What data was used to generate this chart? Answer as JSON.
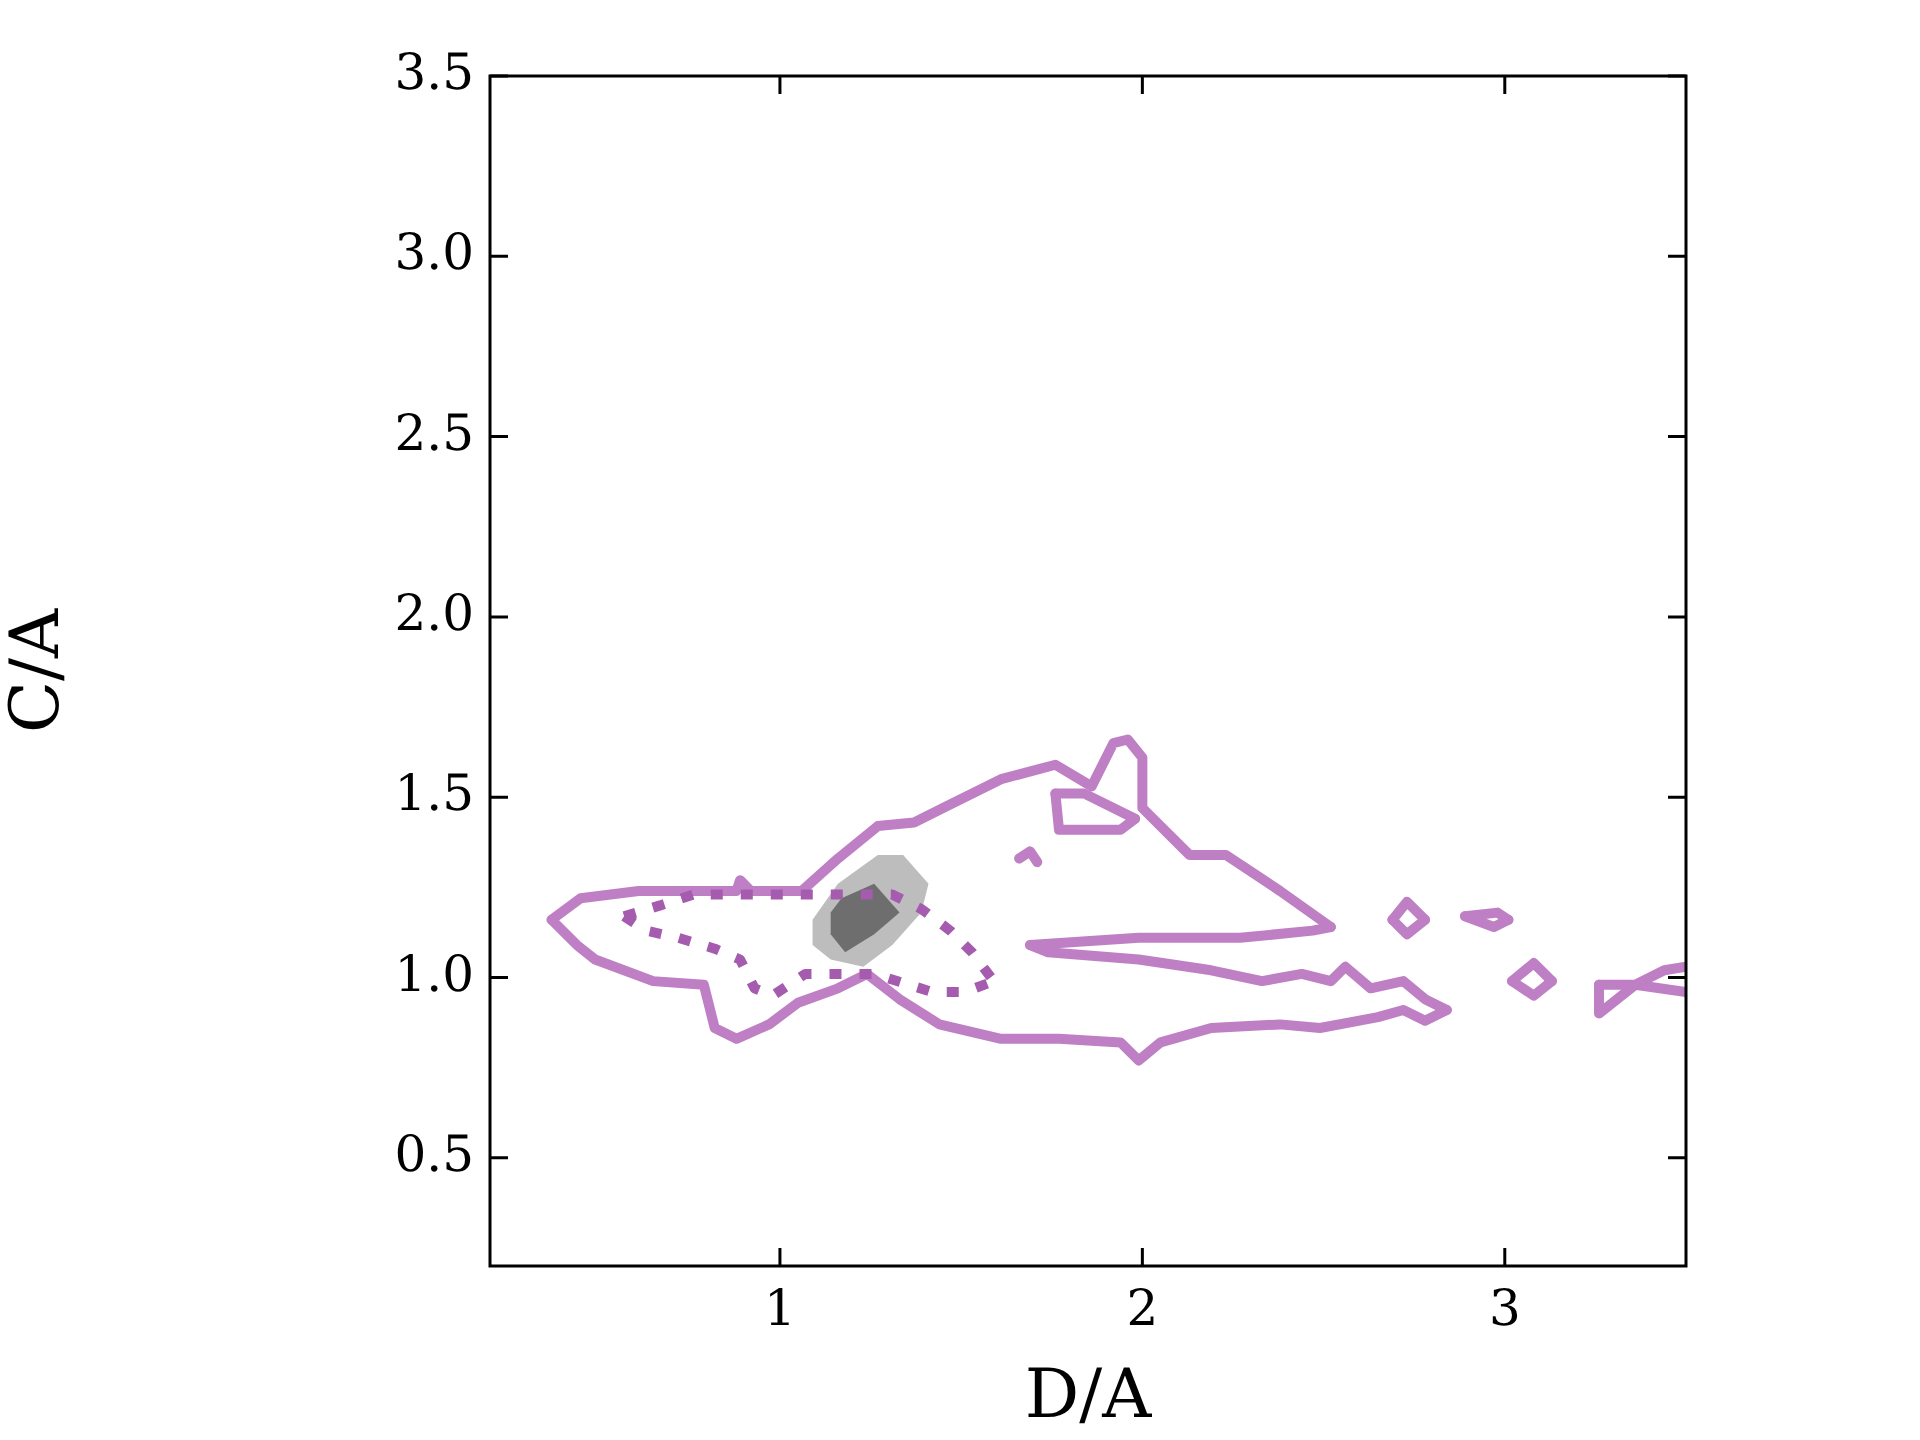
{
  "chart_data": {
    "type": "line",
    "xlabel": "D/A",
    "ylabel": "C/A",
    "xlim": [
      0.2,
      3.5
    ],
    "ylim": [
      0.2,
      3.5
    ],
    "xticks": [
      1,
      2,
      3
    ],
    "yticks": [
      {
        "value": 0.5,
        "label": "0.5"
      },
      {
        "value": 1,
        "label": "1.0"
      },
      {
        "value": 1.5,
        "label": "1.5"
      },
      {
        "value": 2,
        "label": "2.0"
      },
      {
        "value": 2.5,
        "label": "2.5"
      },
      {
        "value": 3,
        "label": "3.0"
      },
      {
        "value": 3.5,
        "label": "3.5"
      }
    ],
    "legend": false,
    "marker": "none",
    "series": [
      {
        "color": "#bf7fc4",
        "line_style": "solid",
        "x": [
          0.37,
          0.45,
          0.61,
          0.88,
          0.89,
          0.92,
          1.06,
          1.16,
          1.27,
          1.37,
          1.45,
          1.61,
          1.76,
          1.86,
          1.92,
          1.96,
          2.0,
          2.0,
          2.13,
          2.23,
          2.38,
          2.52
        ],
        "values": [
          1.16,
          1.22,
          1.24,
          1.24,
          1.27,
          1.24,
          1.24,
          1.33,
          1.42,
          1.43,
          1.47,
          1.55,
          1.59,
          1.53,
          1.65,
          1.66,
          1.61,
          1.47,
          1.34,
          1.34,
          1.24,
          1.14
        ]
      },
      {
        "color": "#bf7fc4",
        "line_style": "solid",
        "x": [
          1.69,
          1.99,
          2.27,
          2.47,
          2.52
        ],
        "values": [
          1.09,
          1.11,
          1.11,
          1.13,
          1.14
        ]
      },
      {
        "color": "#bf7fc4",
        "line_style": "solid",
        "x": [
          1.69,
          1.74,
          1.99,
          2.19,
          2.33,
          2.44,
          2.52,
          2.56,
          2.63,
          2.72,
          2.78,
          2.84
        ],
        "values": [
          1.09,
          1.07,
          1.05,
          1.02,
          0.99,
          1.01,
          0.99,
          1.03,
          0.97,
          0.99,
          0.94,
          0.91
        ]
      },
      {
        "color": "#bf7fc4",
        "line_style": "solid",
        "x": [
          0.37,
          0.44,
          0.49,
          0.65,
          0.79,
          0.82,
          0.88,
          0.97,
          1.05,
          1.16,
          1.24,
          1.33,
          1.44,
          1.61,
          1.77,
          1.94,
          1.99,
          2.05,
          2.19,
          2.38,
          2.49,
          2.65,
          2.72,
          2.78,
          2.84
        ],
        "values": [
          1.16,
          1.09,
          1.05,
          0.99,
          0.98,
          0.86,
          0.83,
          0.87,
          0.93,
          0.97,
          1.01,
          0.94,
          0.87,
          0.83,
          0.83,
          0.82,
          0.77,
          0.82,
          0.86,
          0.87,
          0.86,
          0.89,
          0.91,
          0.88,
          0.91
        ]
      },
      {
        "color": "#bf7fc4",
        "line_style": "solid",
        "x": [
          1.76,
          1.84,
          1.98
        ],
        "values": [
          1.51,
          1.51,
          1.44
        ]
      },
      {
        "color": "#bf7fc4",
        "line_style": "solid",
        "x": [
          1.76,
          1.77,
          1.94,
          1.98
        ],
        "values": [
          1.51,
          1.41,
          1.41,
          1.44
        ]
      },
      {
        "color": "#bf7fc4",
        "line_style": "solid",
        "x": [
          1.66,
          1.69,
          1.71
        ],
        "values": [
          1.33,
          1.35,
          1.32
        ]
      },
      {
        "color": "#bf7fc4",
        "line_style": "solid",
        "x": [
          2.69,
          2.73,
          2.78
        ],
        "values": [
          1.16,
          1.21,
          1.16
        ]
      },
      {
        "color": "#bf7fc4",
        "line_style": "solid",
        "x": [
          2.69,
          2.73,
          2.78
        ],
        "values": [
          1.16,
          1.12,
          1.16
        ]
      },
      {
        "color": "#bf7fc4",
        "line_style": "solid",
        "x": [
          2.89,
          2.98,
          3.01
        ],
        "values": [
          1.17,
          1.18,
          1.16
        ]
      },
      {
        "color": "#bf7fc4",
        "line_style": "solid",
        "x": [
          2.89,
          2.97,
          3.01
        ],
        "values": [
          1.17,
          1.14,
          1.16
        ]
      },
      {
        "color": "#bf7fc4",
        "line_style": "solid",
        "x": [
          3.02,
          3.08,
          3.13
        ],
        "values": [
          0.99,
          1.04,
          0.99
        ]
      },
      {
        "color": "#bf7fc4",
        "line_style": "solid",
        "x": [
          3.02,
          3.08,
          3.13
        ],
        "values": [
          0.99,
          0.95,
          0.99
        ]
      },
      {
        "color": "#bf7fc4",
        "line_style": "solid",
        "x": [
          3.26,
          3.26,
          3.36,
          3.5
        ],
        "values": [
          0.98,
          0.9,
          0.98,
          0.96
        ]
      },
      {
        "color": "#bf7fc4",
        "line_style": "solid",
        "x": [
          3.26,
          3.36,
          3.44,
          3.5
        ],
        "values": [
          0.98,
          0.98,
          1.02,
          1.03
        ]
      },
      {
        "color": "#a55bae",
        "line_style": "dotted",
        "x": [
          0.57,
          0.67,
          0.76,
          0.94,
          1.12,
          1.31,
          1.39,
          1.47,
          1.53,
          1.59
        ],
        "values": [
          1.17,
          1.2,
          1.23,
          1.23,
          1.23,
          1.23,
          1.19,
          1.13,
          1.07,
          0.99
        ]
      },
      {
        "color": "#a55bae",
        "line_style": "dotted",
        "x": [
          0.57,
          0.63,
          0.72,
          0.82,
          0.89,
          0.93,
          0.98,
          1.07,
          1.14,
          1.26,
          1.42,
          1.51,
          1.59
        ],
        "values": [
          1.17,
          1.13,
          1.11,
          1.08,
          1.05,
          0.97,
          0.95,
          1.01,
          1.01,
          1.01,
          0.96,
          0.96,
          0.99
        ]
      },
      {
        "type": "area",
        "color": "#bdbdbd",
        "x": [
          1.09,
          1.16,
          1.27,
          1.34,
          1.41,
          1.39,
          1.31,
          1.23,
          1.14,
          1.09,
          1.09
        ],
        "values": [
          1.16,
          1.26,
          1.34,
          1.34,
          1.26,
          1.18,
          1.09,
          1.03,
          1.05,
          1.09,
          1.16
        ]
      },
      {
        "type": "area",
        "color": "#6e6e6e",
        "x": [
          1.14,
          1.17,
          1.26,
          1.33,
          1.26,
          1.18,
          1.14,
          1.14
        ],
        "values": [
          1.18,
          1.22,
          1.26,
          1.18,
          1.12,
          1.07,
          1.12,
          1.18
        ]
      }
    ]
  }
}
